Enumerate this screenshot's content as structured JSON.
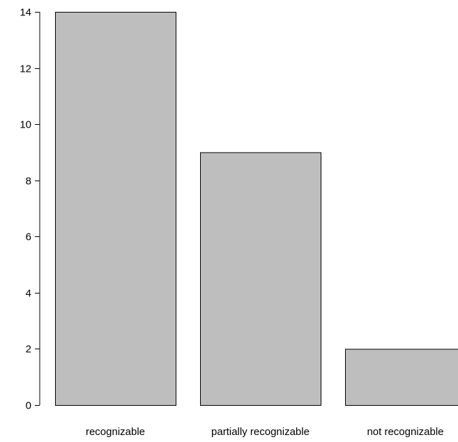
{
  "chart_data": {
    "type": "bar",
    "title": "",
    "xlabel": "",
    "ylabel": "",
    "categories": [
      "recognizable",
      "partially recognizable",
      "not recognizable"
    ],
    "values": [
      14,
      9,
      2
    ],
    "ylim": [
      0,
      14
    ],
    "yticks": [
      "0",
      "2",
      "4",
      "6",
      "8",
      "10",
      "12",
      "14"
    ],
    "grid": false,
    "legend": "none",
    "colors": {
      "bar_fill": "#bebebe",
      "bar_stroke": "#000000",
      "axis": "#000000"
    }
  }
}
